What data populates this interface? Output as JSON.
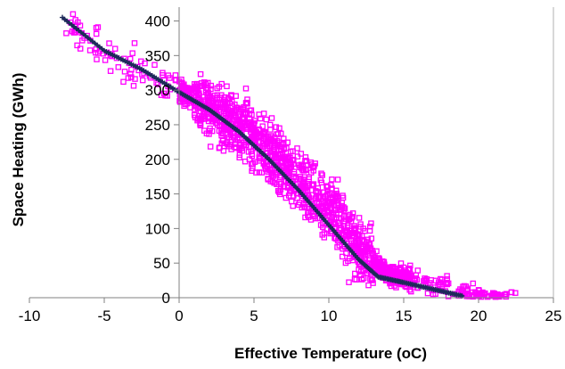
{
  "chart_data": {
    "type": "scatter",
    "title": "",
    "xlabel": "Effective Temperature (oC)",
    "ylabel": "Space Heating  (GWh)",
    "xlim": [
      -10,
      25
    ],
    "ylim": [
      0,
      420
    ],
    "xticks": [
      -10,
      -5,
      0,
      5,
      10,
      15,
      20,
      25
    ],
    "yticks": [
      0,
      50,
      100,
      150,
      200,
      250,
      300,
      350,
      400
    ],
    "grid": false,
    "legend": "none",
    "series": [
      {
        "kind": "scatter",
        "marker": "open-square",
        "color": "#ff00ff",
        "trend": [
          [
            -8,
            400
          ],
          [
            -5,
            355
          ],
          [
            0,
            300
          ],
          [
            4,
            248
          ],
          [
            8,
            170
          ],
          [
            11,
            100
          ],
          [
            12.5,
            60
          ],
          [
            14,
            35
          ],
          [
            16,
            25
          ],
          [
            18,
            12
          ],
          [
            20,
            3
          ],
          [
            22,
            1
          ]
        ],
        "spread": 22
      },
      {
        "kind": "line",
        "marker": "plus",
        "color": "#1e2a5a",
        "points": [
          [
            -7.8,
            405
          ],
          [
            -5,
            357
          ],
          [
            -2.5,
            330
          ],
          [
            0,
            297
          ],
          [
            2,
            272
          ],
          [
            4,
            240
          ],
          [
            6,
            200
          ],
          [
            8,
            155
          ],
          [
            10,
            105
          ],
          [
            12,
            55
          ],
          [
            13.3,
            30
          ],
          [
            15,
            22
          ],
          [
            17,
            12
          ],
          [
            19,
            2
          ]
        ]
      }
    ]
  }
}
